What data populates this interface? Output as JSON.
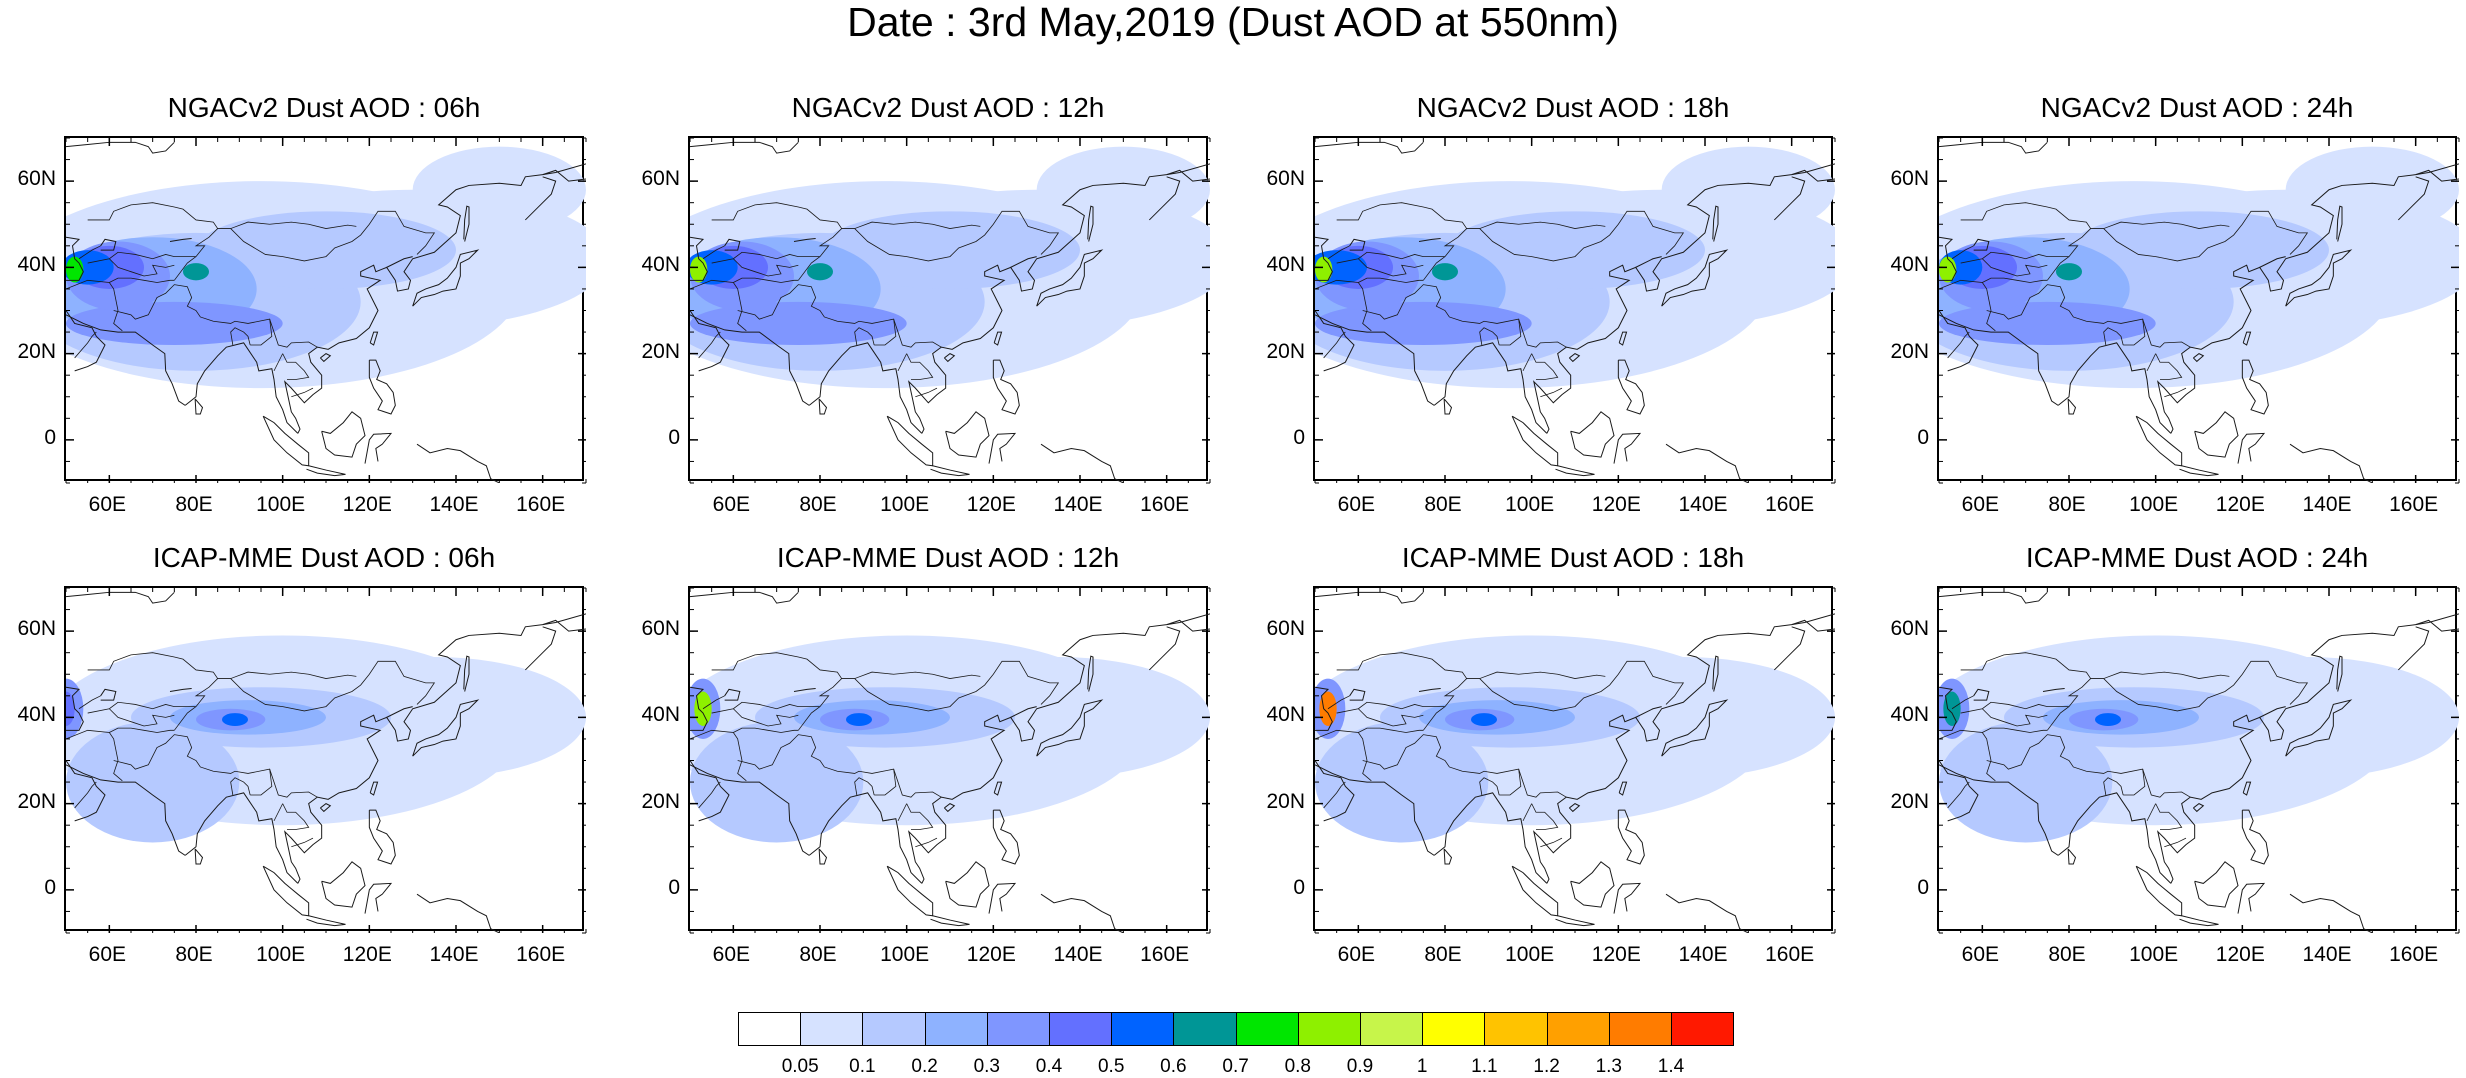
{
  "figure": {
    "title": "Date : 3rd May,2019 (Dust AOD at 550nm)"
  },
  "panels": [
    {
      "title": "NGACv2 Dust AOD : 06h",
      "model": "NGACv2",
      "hour": "06h"
    },
    {
      "title": "NGACv2 Dust AOD : 12h",
      "model": "NGACv2",
      "hour": "12h"
    },
    {
      "title": "NGACv2 Dust AOD : 18h",
      "model": "NGACv2",
      "hour": "18h"
    },
    {
      "title": "NGACv2 Dust AOD : 24h",
      "model": "NGACv2",
      "hour": "24h"
    },
    {
      "title": "ICAP-MME Dust AOD : 06h",
      "model": "ICAP-MME",
      "hour": "06h"
    },
    {
      "title": "ICAP-MME Dust AOD : 12h",
      "model": "ICAP-MME",
      "hour": "12h"
    },
    {
      "title": "ICAP-MME Dust AOD : 18h",
      "model": "ICAP-MME",
      "hour": "18h"
    },
    {
      "title": "ICAP-MME Dust AOD : 24h",
      "model": "ICAP-MME",
      "hour": "24h"
    }
  ],
  "axes": {
    "lon_range": [
      50,
      170
    ],
    "lat_range": [
      -10,
      70
    ],
    "x_ticks": [
      "60E",
      "80E",
      "100E",
      "120E",
      "140E",
      "160E"
    ],
    "x_tick_values": [
      60,
      80,
      100,
      120,
      140,
      160
    ],
    "y_ticks": [
      "60N",
      "40N",
      "20N",
      "0"
    ],
    "y_tick_values": [
      60,
      40,
      20,
      0
    ]
  },
  "colorbar": {
    "levels": [
      "0.05",
      "0.1",
      "0.2",
      "0.3",
      "0.4",
      "0.5",
      "0.6",
      "0.7",
      "0.8",
      "0.9",
      "1",
      "1.1",
      "1.2",
      "1.3",
      "1.4"
    ],
    "colors": [
      "#ffffff",
      "#d6e2ff",
      "#b5c9ff",
      "#8eb2ff",
      "#7f96ff",
      "#6370ff",
      "#0063ff",
      "#009696",
      "#00e600",
      "#8ef000",
      "#c7f54a",
      "#ffff00",
      "#ffc300",
      "#ffa000",
      "#ff7c00",
      "#ff1900"
    ]
  }
}
